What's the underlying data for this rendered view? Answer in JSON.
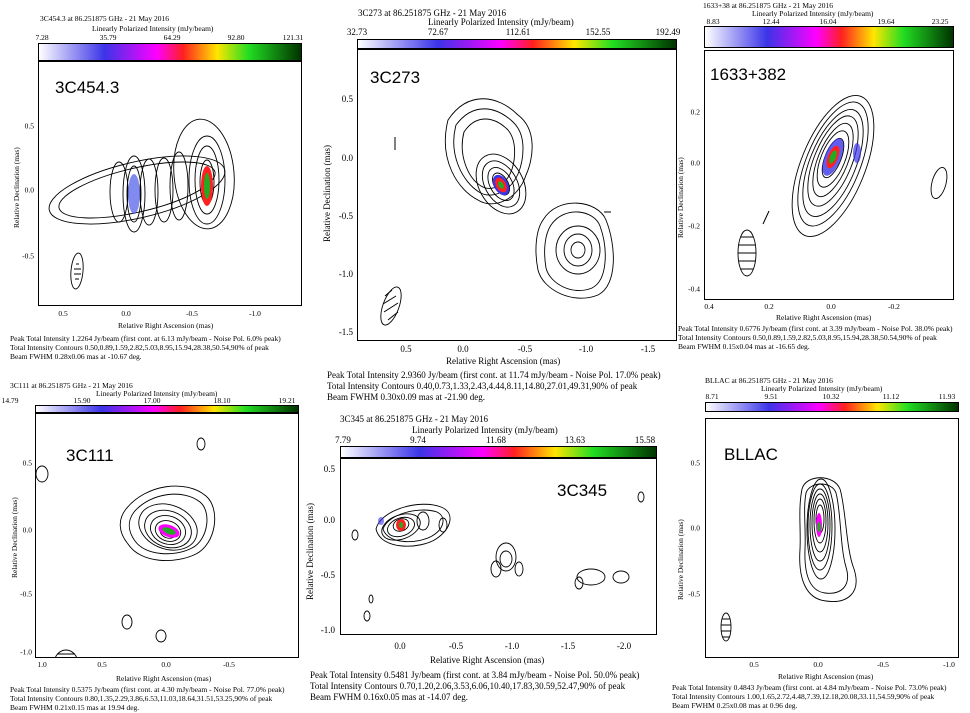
{
  "panels": [
    {
      "header": "3C454.3 at 86.251875 GHz - 21 May 2016",
      "colorbar_title": "Linearly Polarized Intensity (mJy/beam)",
      "colorbar_ticks": [
        "7.28",
        "35.79",
        "64.29",
        "92.80",
        "121.31"
      ],
      "source": "3C454.3",
      "ylabel": "Relative Declination (mas)",
      "xlabel": "Relative Right Ascension (mas)",
      "yticks": [
        "0.5",
        "0.0",
        "-0.5"
      ],
      "xticks": [
        "0.5",
        "0.0",
        "-0.5",
        "-1.0"
      ],
      "footer": [
        "Peak Total Intensity 1.2264 Jy/beam (first cont. at 6.13 mJy/beam - Noise Pol. 6.0% peak)",
        "Total Intensity Contours 0.50,0.89,1.59,2.82,5.03,8.95,15.94,28.38,50.54,90% of peak",
        "Beam FWHM 0.28x0.06 mas at -10.67 deg."
      ]
    },
    {
      "header": "3C273 at 86.251875 GHz - 21 May 2016",
      "colorbar_title": "Linearly Polarized Intensity (mJy/beam)",
      "colorbar_ticks": [
        "32.73",
        "72.67",
        "112.61",
        "152.55",
        "192.49"
      ],
      "source": "3C273",
      "ylabel": "Relative Declination (mas)",
      "xlabel": "Relative Right Ascension (mas)",
      "yticks": [
        "0.5",
        "0.0",
        "-0.5",
        "-1.0",
        "-1.5"
      ],
      "xticks": [
        "0.5",
        "0.0",
        "-0.5",
        "-1.0",
        "-1.5"
      ],
      "footer": [
        "Peak Total Intensity 2.9360 Jy/beam (first cont. at 11.74 mJy/beam - Noise Pol. 17.0% peak)",
        "Total Intensity Contours 0.40,0.73,1.33,2.43,4.44,8.11,14.80,27.01,49.31,90% of peak",
        "Beam FWHM 0.30x0.09 mas at -21.90 deg."
      ]
    },
    {
      "header": "1633+38 at 86.251875 GHz - 21 May 2016",
      "colorbar_title": "Linearly Polarized Intensity (mJy/beam)",
      "colorbar_ticks": [
        "8.83",
        "12.44",
        "16.04",
        "19.64",
        "23.25"
      ],
      "source": "1633+382",
      "ylabel": "Relative Declination (mas)",
      "xlabel": "Relative Right Ascension (mas)",
      "yticks": [
        "0.2",
        "0.0",
        "-0.2",
        "-0.4"
      ],
      "xticks": [
        "0.4",
        "0.2",
        "0.0",
        "-0.2"
      ],
      "footer": [
        "Peak Total Intensity 0.6776 Jy/beam (first cont. at 3.39 mJy/beam - Noise Pol. 38.0% peak)",
        "Total Intensity Contours 0.50,0.89,1.59,2.82,5.03,8.95,15.94,28.38,50.54,90% of peak",
        "Beam FWHM 0.15x0.04 mas at -16.65 deg."
      ]
    },
    {
      "header": "3C111 at 86.251875 GHz - 21 May 2016",
      "colorbar_title": "Linearly Polarized Intensity (mJy/beam)",
      "colorbar_ticks": [
        "14.79",
        "15.90",
        "17.00",
        "18.10",
        "19.21"
      ],
      "source": "3C111",
      "ylabel": "Relative Declination (mas)",
      "xlabel": "Relative Right Ascension (mas)",
      "yticks": [
        "0.5",
        "0.0",
        "-0.5",
        "-1.0"
      ],
      "xticks": [
        "1.0",
        "0.5",
        "0.0",
        "-0.5"
      ],
      "footer": [
        "Peak Total Intensity 0.5375 Jy/beam (first cont. at 4.30 mJy/beam - Noise Pol. 77.0% peak)",
        "Total Intensity Contours 0.80,1.35,2.29,3.86,6.53,11.03,18.64,31.51,53.25,90% of peak",
        "Beam FWHM 0.21x0.15 mas at 19.94 deg."
      ]
    },
    {
      "header": "3C345 at 86.251875 GHz - 21 May 2016",
      "colorbar_title": "Linearly Polarized Intensity (mJy/beam)",
      "colorbar_ticks": [
        "7.79",
        "9.74",
        "11.68",
        "13.63",
        "15.58"
      ],
      "source": "3C345",
      "ylabel": "Relative Declination (mas)",
      "xlabel": "Relative Right Ascension (mas)",
      "yticks": [
        "0.5",
        "0.0",
        "-0.5",
        "-1.0"
      ],
      "xticks": [
        "0.0",
        "-0.5",
        "-1.0",
        "-1.5",
        "-2.0"
      ],
      "footer": [
        "Peak Total Intensity 0.5481 Jy/beam (first cont. at 3.84 mJy/beam - Noise Pol. 50.0% peak)",
        "Total Intensity Contours 0.70,1.20,2.06,3.53,6.06,10.40,17.83,30.59,52.47,90% of peak",
        "Beam FWHM 0.16x0.05 mas at -14.07 deg."
      ]
    },
    {
      "header": "BLLAC at 86.251875 GHz - 21 May 2016",
      "colorbar_title": "Linearly Polarized Intensity (mJy/beam)",
      "colorbar_ticks": [
        "8.71",
        "9.51",
        "10.32",
        "11.12",
        "11.93"
      ],
      "source": "BLLAC",
      "ylabel": "Relative Declination (mas)",
      "xlabel": "Relative Right Ascension (mas)",
      "yticks": [
        "0.5",
        "0.0",
        "-0.5"
      ],
      "xticks": [
        "0.5",
        "0.0",
        "-0.5",
        "-1.0"
      ],
      "footer": [
        "Peak Total Intensity 0.4843 Jy/beam (first cont. at 4.84 mJy/beam - Noise Pol. 73.0% peak)",
        "Total Intensity Contours 1.00,1.65,2.72,4.48,7.39,12.18,20.08,33.11,54.59,90% of peak",
        "Beam FWHM 0.25x0.08 mas at 0.96 deg."
      ]
    }
  ],
  "chart_data": [
    {
      "type": "heatmap",
      "title": "3C454.3 at 86.251875 GHz - 21 May 2016",
      "xlabel": "Relative Right Ascension (mas)",
      "ylabel": "Relative Declination (mas)",
      "xlim": [
        0.75,
        -1.3
      ],
      "ylim": [
        -0.9,
        0.85
      ],
      "colorbar": {
        "label": "Linearly Polarized Intensity (mJy/beam)",
        "range": [
          7.28,
          121.31
        ]
      },
      "peak_total_intensity_jy_beam": 1.2264,
      "beam_fwhm_mas": [
        0.28,
        0.06
      ],
      "beam_pa_deg": -10.67
    },
    {
      "type": "heatmap",
      "title": "3C273 at 86.251875 GHz - 21 May 2016",
      "xlabel": "Relative Right Ascension (mas)",
      "ylabel": "Relative Declination (mas)",
      "xlim": [
        0.85,
        -1.65
      ],
      "ylim": [
        -1.55,
        0.4
      ],
      "colorbar": {
        "label": "Linearly Polarized Intensity (mJy/beam)",
        "range": [
          32.73,
          192.49
        ]
      },
      "peak_total_intensity_jy_beam": 2.936,
      "beam_fwhm_mas": [
        0.3,
        0.09
      ],
      "beam_pa_deg": -21.9
    },
    {
      "type": "heatmap",
      "title": "1633+38 at 86.251875 GHz - 21 May 2016",
      "xlabel": "Relative Right Ascension (mas)",
      "ylabel": "Relative Declination (mas)",
      "xlim": [
        0.42,
        -0.42
      ],
      "ylim": [
        -0.42,
        0.33
      ],
      "colorbar": {
        "label": "Linearly Polarized Intensity (mJy/beam)",
        "range": [
          8.83,
          23.25
        ]
      },
      "peak_total_intensity_jy_beam": 0.6776,
      "beam_fwhm_mas": [
        0.15,
        0.04
      ],
      "beam_pa_deg": -16.65
    },
    {
      "type": "heatmap",
      "title": "3C111 at 86.251875 GHz - 21 May 2016",
      "xlabel": "Relative Right Ascension (mas)",
      "ylabel": "Relative Declination (mas)",
      "xlim": [
        1.0,
        -0.75
      ],
      "ylim": [
        -1.05,
        0.75
      ],
      "colorbar": {
        "label": "Linearly Polarized Intensity (mJy/beam)",
        "range": [
          14.79,
          19.21
        ]
      },
      "peak_total_intensity_jy_beam": 0.5375,
      "beam_fwhm_mas": [
        0.21,
        0.15
      ],
      "beam_pa_deg": 19.94
    },
    {
      "type": "heatmap",
      "title": "3C345 at 86.251875 GHz - 21 May 2016",
      "xlabel": "Relative Right Ascension (mas)",
      "ylabel": "Relative Declination (mas)",
      "xlim": [
        0.4,
        -2.5
      ],
      "ylim": [
        -1.05,
        0.75
      ],
      "colorbar": {
        "label": "Linearly Polarized Intensity (mJy/beam)",
        "range": [
          7.79,
          15.58
        ]
      },
      "peak_total_intensity_jy_beam": 0.5481,
      "beam_fwhm_mas": [
        0.16,
        0.05
      ],
      "beam_pa_deg": -14.07
    },
    {
      "type": "heatmap",
      "title": "BLLAC at 86.251875 GHz - 21 May 2016",
      "xlabel": "Relative Right Ascension (mas)",
      "ylabel": "Relative Declination (mas)",
      "xlim": [
        0.9,
        -1.0
      ],
      "ylim": [
        -0.9,
        0.62
      ],
      "colorbar": {
        "label": "Linearly Polarized Intensity (mJy/beam)",
        "range": [
          8.71,
          11.93
        ]
      },
      "peak_total_intensity_jy_beam": 0.4843,
      "beam_fwhm_mas": [
        0.25,
        0.08
      ],
      "beam_pa_deg": 0.96
    }
  ]
}
